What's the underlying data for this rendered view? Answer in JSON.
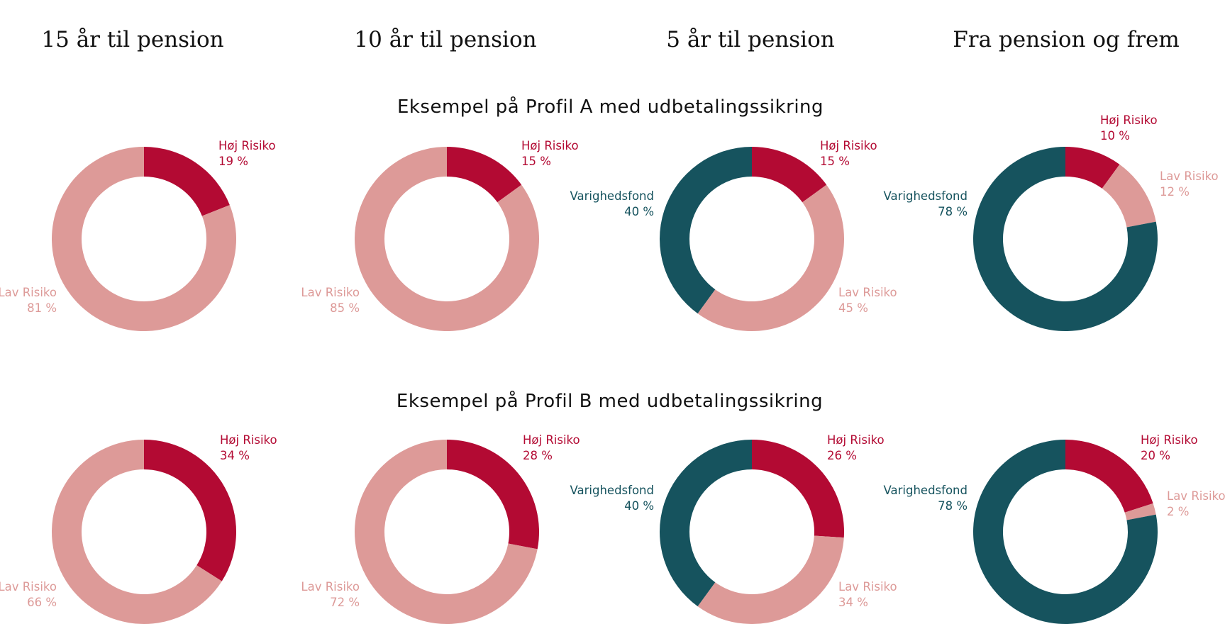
{
  "colors": {
    "hoj_risiko": "#B30A33",
    "lav_risiko": "#DD9A98",
    "varighedsfond": "#16535E"
  },
  "columns": [
    "15 år til pension",
    "10 år til pension",
    "5 år til pension",
    "Fra pension og frem"
  ],
  "chart_data": [
    {
      "type": "pie",
      "title": "Eksempel på Profil A med udbetalingssikring",
      "charts": [
        {
          "column": "15 år til pension",
          "slices": [
            {
              "name": "Høj Risiko",
              "value": 19,
              "value_label": "19 %"
            },
            {
              "name": "Lav Risiko",
              "value": 81,
              "value_label": "81 %"
            }
          ]
        },
        {
          "column": "10 år til pension",
          "slices": [
            {
              "name": "Høj Risiko",
              "value": 15,
              "value_label": "15 %"
            },
            {
              "name": "Lav Risiko",
              "value": 85,
              "value_label": "85 %"
            }
          ]
        },
        {
          "column": "5 år til pension",
          "slices": [
            {
              "name": "Høj Risiko",
              "value": 15,
              "value_label": "15 %"
            },
            {
              "name": "Lav Risiko",
              "value": 45,
              "value_label": "45 %"
            },
            {
              "name": "Varighedsfond",
              "value": 40,
              "value_label": "40 %"
            }
          ]
        },
        {
          "column": "Fra pension og frem",
          "slices": [
            {
              "name": "Høj Risiko",
              "value": 10,
              "value_label": "10 %"
            },
            {
              "name": "Lav Risiko",
              "value": 12,
              "value_label": "12 %"
            },
            {
              "name": "Varighedsfond",
              "value": 78,
              "value_label": "78 %"
            }
          ]
        }
      ]
    },
    {
      "type": "pie",
      "title": "Eksempel på Profil B med udbetalingssikring",
      "charts": [
        {
          "column": "15 år til pension",
          "slices": [
            {
              "name": "Høj Risiko",
              "value": 34,
              "value_label": "34 %"
            },
            {
              "name": "Lav Risiko",
              "value": 66,
              "value_label": "66 %"
            }
          ]
        },
        {
          "column": "10 år til pension",
          "slices": [
            {
              "name": "Høj Risiko",
              "value": 28,
              "value_label": "28 %"
            },
            {
              "name": "Lav Risiko",
              "value": 72,
              "value_label": "72 %"
            }
          ]
        },
        {
          "column": "5 år til pension",
          "slices": [
            {
              "name": "Høj Risiko",
              "value": 26,
              "value_label": "26 %"
            },
            {
              "name": "Lav Risiko",
              "value": 34,
              "value_label": "34 %"
            },
            {
              "name": "Varighedsfond",
              "value": 40,
              "value_label": "40 %"
            }
          ]
        },
        {
          "column": "Fra pension og frem",
          "slices": [
            {
              "name": "Høj Risiko",
              "value": 20,
              "value_label": "20 %"
            },
            {
              "name": "Lav Risiko",
              "value": 2,
              "value_label": "2 %"
            },
            {
              "name": "Varighedsfond",
              "value": 78,
              "value_label": "78 %"
            }
          ]
        }
      ]
    }
  ]
}
